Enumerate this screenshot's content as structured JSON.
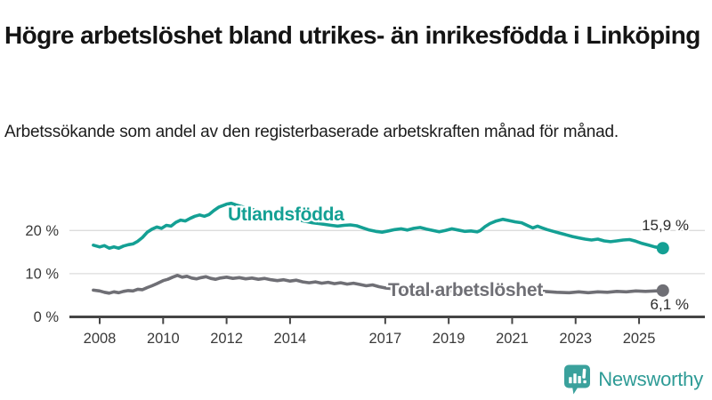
{
  "header": {
    "title": "Högre arbetslöshet bland utrikes- än inrikesfödda i Linköping",
    "subtitle": "Arbetssökande som andel av den registerbaserade arbetskraften månad för månad."
  },
  "footer": {
    "brand": "Newsworthy",
    "logo_icon": "bar-chart-speech-bubble-icon",
    "brand_color": "#2e9b96",
    "icon_color": "#3aa19c"
  },
  "colors": {
    "accent_teal": "#14a094",
    "neutral_gray": "#6f6f75",
    "gridline": "#dcdcdc",
    "axis": "#454545",
    "tick_text": "#3a3a3a",
    "value_text": "#2b2b2b"
  },
  "chart_data": {
    "type": "line",
    "title": "Högre arbetslöshet bland utrikes- än inrikesfödda i Linköping",
    "subtitle": "Arbetssökande som andel av den registerbaserade arbetskraften månad för månad.",
    "grid": true,
    "x_axis": {
      "tick_years": [
        2008,
        2010,
        2012,
        2014,
        2017,
        2019,
        2021,
        2023,
        2025
      ],
      "range": [
        2007.8,
        2025.75
      ]
    },
    "y_axis": {
      "tick_values": [
        0,
        10,
        20
      ],
      "tick_labels": [
        "0 %",
        "10 %",
        "20 %"
      ],
      "range": [
        0,
        27
      ],
      "unit": "%"
    },
    "series": [
      {
        "name": "Utlandsfödda",
        "color": "#14a094",
        "end_label": "15,9 %",
        "end_value": 15.9,
        "points": [
          [
            2007.8,
            16.6
          ],
          [
            2008.0,
            16.2
          ],
          [
            2008.15,
            16.5
          ],
          [
            2008.3,
            15.9
          ],
          [
            2008.45,
            16.2
          ],
          [
            2008.6,
            15.9
          ],
          [
            2008.75,
            16.4
          ],
          [
            2008.9,
            16.7
          ],
          [
            2009.05,
            16.9
          ],
          [
            2009.2,
            17.5
          ],
          [
            2009.35,
            18.4
          ],
          [
            2009.5,
            19.6
          ],
          [
            2009.65,
            20.3
          ],
          [
            2009.8,
            20.8
          ],
          [
            2009.95,
            20.5
          ],
          [
            2010.1,
            21.2
          ],
          [
            2010.25,
            21.0
          ],
          [
            2010.4,
            21.9
          ],
          [
            2010.55,
            22.4
          ],
          [
            2010.7,
            22.2
          ],
          [
            2010.85,
            22.8
          ],
          [
            2011.0,
            23.3
          ],
          [
            2011.15,
            23.6
          ],
          [
            2011.3,
            23.3
          ],
          [
            2011.45,
            23.7
          ],
          [
            2011.6,
            24.6
          ],
          [
            2011.75,
            25.4
          ],
          [
            2011.9,
            25.8
          ],
          [
            2012.0,
            26.1
          ],
          [
            2012.15,
            26.3
          ],
          [
            2012.3,
            25.9
          ],
          [
            2012.5,
            25.5
          ],
          [
            2012.7,
            25.1
          ],
          [
            2012.9,
            24.7
          ],
          [
            2013.1,
            24.4
          ],
          [
            2013.3,
            24.0
          ],
          [
            2013.5,
            23.6
          ],
          [
            2013.7,
            23.3
          ],
          [
            2013.9,
            23.0
          ],
          [
            2014.1,
            22.7
          ],
          [
            2014.3,
            22.4
          ],
          [
            2014.5,
            22.1
          ],
          [
            2014.7,
            21.8
          ],
          [
            2014.9,
            21.6
          ],
          [
            2015.1,
            21.4
          ],
          [
            2015.3,
            21.2
          ],
          [
            2015.5,
            21.0
          ],
          [
            2015.7,
            21.2
          ],
          [
            2015.9,
            21.3
          ],
          [
            2016.1,
            21.1
          ],
          [
            2016.3,
            20.6
          ],
          [
            2016.5,
            20.1
          ],
          [
            2016.7,
            19.8
          ],
          [
            2016.9,
            19.6
          ],
          [
            2017.1,
            19.9
          ],
          [
            2017.3,
            20.2
          ],
          [
            2017.5,
            20.4
          ],
          [
            2017.7,
            20.1
          ],
          [
            2017.9,
            20.5
          ],
          [
            2018.1,
            20.7
          ],
          [
            2018.3,
            20.3
          ],
          [
            2018.5,
            20.0
          ],
          [
            2018.7,
            19.7
          ],
          [
            2018.9,
            20.0
          ],
          [
            2019.1,
            20.4
          ],
          [
            2019.3,
            20.1
          ],
          [
            2019.5,
            19.8
          ],
          [
            2019.7,
            19.9
          ],
          [
            2019.9,
            19.7
          ],
          [
            2020.0,
            20.0
          ],
          [
            2020.15,
            20.9
          ],
          [
            2020.3,
            21.6
          ],
          [
            2020.5,
            22.2
          ],
          [
            2020.7,
            22.6
          ],
          [
            2020.9,
            22.3
          ],
          [
            2021.1,
            22.0
          ],
          [
            2021.3,
            21.8
          ],
          [
            2021.5,
            21.1
          ],
          [
            2021.65,
            20.6
          ],
          [
            2021.8,
            21.0
          ],
          [
            2021.95,
            20.6
          ],
          [
            2022.1,
            20.2
          ],
          [
            2022.3,
            19.8
          ],
          [
            2022.5,
            19.4
          ],
          [
            2022.7,
            19.0
          ],
          [
            2022.9,
            18.6
          ],
          [
            2023.1,
            18.3
          ],
          [
            2023.3,
            18.0
          ],
          [
            2023.5,
            17.8
          ],
          [
            2023.7,
            18.0
          ],
          [
            2023.9,
            17.6
          ],
          [
            2024.1,
            17.4
          ],
          [
            2024.3,
            17.6
          ],
          [
            2024.5,
            17.8
          ],
          [
            2024.7,
            17.9
          ],
          [
            2024.9,
            17.5
          ],
          [
            2025.1,
            17.0
          ],
          [
            2025.3,
            16.6
          ],
          [
            2025.5,
            16.2
          ],
          [
            2025.75,
            15.9
          ]
        ]
      },
      {
        "name": "Total arbetslöshet",
        "color": "#6f6f75",
        "end_label": "6,1 %",
        "end_value": 6.1,
        "points": [
          [
            2007.8,
            6.2
          ],
          [
            2008.0,
            6.0
          ],
          [
            2008.15,
            5.7
          ],
          [
            2008.3,
            5.5
          ],
          [
            2008.45,
            5.8
          ],
          [
            2008.6,
            5.6
          ],
          [
            2008.75,
            5.9
          ],
          [
            2008.9,
            6.1
          ],
          [
            2009.05,
            6.0
          ],
          [
            2009.2,
            6.4
          ],
          [
            2009.35,
            6.3
          ],
          [
            2009.5,
            6.8
          ],
          [
            2009.65,
            7.2
          ],
          [
            2009.8,
            7.7
          ],
          [
            2010.0,
            8.4
          ],
          [
            2010.15,
            8.7
          ],
          [
            2010.3,
            9.2
          ],
          [
            2010.45,
            9.6
          ],
          [
            2010.6,
            9.2
          ],
          [
            2010.75,
            9.4
          ],
          [
            2010.9,
            9.0
          ],
          [
            2011.05,
            8.8
          ],
          [
            2011.2,
            9.1
          ],
          [
            2011.35,
            9.3
          ],
          [
            2011.5,
            8.9
          ],
          [
            2011.65,
            8.7
          ],
          [
            2011.8,
            9.0
          ],
          [
            2012.0,
            9.2
          ],
          [
            2012.2,
            8.9
          ],
          [
            2012.4,
            9.1
          ],
          [
            2012.6,
            8.8
          ],
          [
            2012.8,
            9.0
          ],
          [
            2013.0,
            8.7
          ],
          [
            2013.2,
            8.9
          ],
          [
            2013.4,
            8.6
          ],
          [
            2013.6,
            8.4
          ],
          [
            2013.8,
            8.6
          ],
          [
            2014.0,
            8.3
          ],
          [
            2014.2,
            8.5
          ],
          [
            2014.4,
            8.1
          ],
          [
            2014.6,
            7.9
          ],
          [
            2014.8,
            8.1
          ],
          [
            2015.0,
            7.8
          ],
          [
            2015.2,
            8.0
          ],
          [
            2015.4,
            7.7
          ],
          [
            2015.6,
            7.9
          ],
          [
            2015.8,
            7.6
          ],
          [
            2016.0,
            7.8
          ],
          [
            2016.2,
            7.5
          ],
          [
            2016.4,
            7.2
          ],
          [
            2016.6,
            7.4
          ],
          [
            2016.8,
            7.0
          ],
          [
            2017.0,
            6.7
          ],
          [
            2017.3,
            6.5
          ],
          [
            2017.6,
            6.3
          ],
          [
            2018.0,
            6.1
          ],
          [
            2018.5,
            5.9
          ],
          [
            2019.0,
            6.0
          ],
          [
            2019.5,
            6.1
          ],
          [
            2020.0,
            6.3
          ],
          [
            2020.5,
            6.5
          ],
          [
            2021.0,
            6.3
          ],
          [
            2021.5,
            6.1
          ],
          [
            2022.0,
            5.9
          ],
          [
            2022.4,
            5.7
          ],
          [
            2022.8,
            5.6
          ],
          [
            2023.1,
            5.8
          ],
          [
            2023.4,
            5.6
          ],
          [
            2023.7,
            5.8
          ],
          [
            2024.0,
            5.7
          ],
          [
            2024.3,
            5.9
          ],
          [
            2024.6,
            5.8
          ],
          [
            2024.9,
            6.0
          ],
          [
            2025.2,
            5.9
          ],
          [
            2025.5,
            6.0
          ],
          [
            2025.75,
            6.1
          ]
        ]
      }
    ],
    "legend_position": "inline-labels"
  }
}
